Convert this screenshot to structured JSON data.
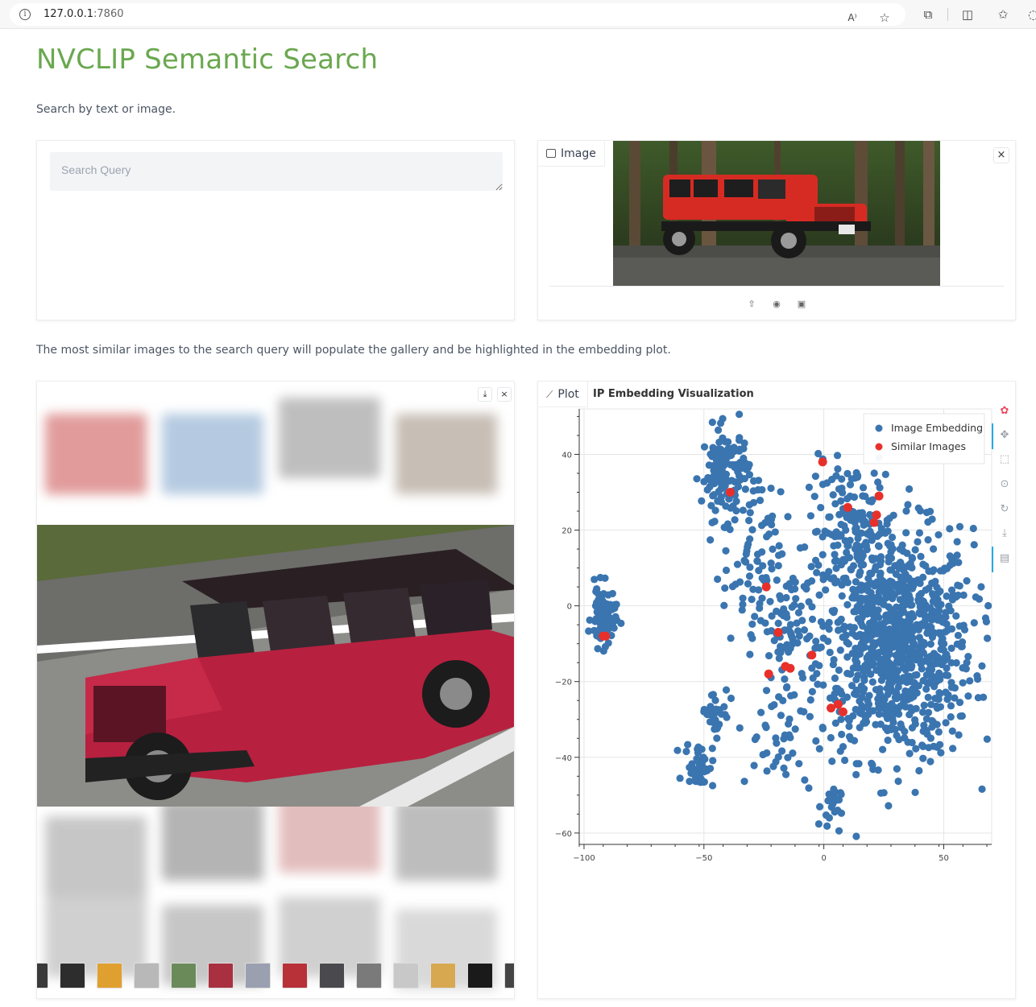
{
  "browser": {
    "url_host": "127.0.0.1",
    "url_port": ":7860"
  },
  "header": {
    "title": "NVCLIP Semantic Search",
    "description": "Search by text or image."
  },
  "search": {
    "placeholder": "Search Query",
    "value": ""
  },
  "image_input": {
    "label": "Image",
    "close_label": "×",
    "sources": [
      "upload-icon",
      "webcam-icon",
      "clipboard-icon"
    ]
  },
  "gallery": {
    "description": "The most similar images to the search query will populate the gallery and be highlighted in the embedding plot.",
    "download_label": "⤓",
    "close_label": "×",
    "thumbnail_count": 15
  },
  "plot": {
    "label": "Plot",
    "title": "IP Embedding Visualization",
    "tools": [
      "bokeh-logo-icon",
      "pan-icon",
      "box-zoom-icon",
      "wheel-zoom-icon",
      "reset-icon",
      "save-icon",
      "hover-icon"
    ]
  },
  "chart_data": {
    "type": "scatter",
    "title": "IP Embedding Visualization",
    "xlim": [
      -102,
      70
    ],
    "ylim": [
      -63,
      52
    ],
    "xticks": [
      -100,
      -50,
      0,
      50
    ],
    "yticks": [
      -60,
      -40,
      -20,
      0,
      20,
      40
    ],
    "grid": true,
    "legend_position": "top-right",
    "series": [
      {
        "name": "Image Embedding",
        "color": "#3a75b0",
        "clusters": [
          {
            "cx": 30,
            "cy": -10,
            "sx": 16,
            "sy": 15,
            "n": 950
          },
          {
            "cx": 12,
            "cy": 20,
            "sx": 9,
            "sy": 9,
            "n": 150
          },
          {
            "cx": -41,
            "cy": 35,
            "sx": 5,
            "sy": 6,
            "n": 150
          },
          {
            "cx": -15,
            "cy": -8,
            "sx": 6,
            "sy": 8,
            "n": 70
          },
          {
            "cx": -92,
            "cy": -3,
            "sx": 2.5,
            "sy": 4,
            "n": 80
          },
          {
            "cx": -52,
            "cy": -42,
            "sx": 3,
            "sy": 3,
            "n": 45
          },
          {
            "cx": -45,
            "cy": -28,
            "sx": 3,
            "sy": 3,
            "n": 30
          },
          {
            "cx": 3,
            "cy": -53,
            "sx": 2,
            "sy": 3,
            "n": 25
          },
          {
            "cx": -30,
            "cy": 10,
            "sx": 6,
            "sy": 10,
            "n": 70
          },
          {
            "cx": -20,
            "cy": -35,
            "sx": 8,
            "sy": 8,
            "n": 40
          }
        ]
      },
      {
        "name": "Similar Images",
        "color": "#e8302a",
        "points": [
          [
            -0.5,
            38
          ],
          [
            -39,
            30
          ],
          [
            10,
            26
          ],
          [
            23,
            29
          ],
          [
            22,
            24
          ],
          [
            21,
            22
          ],
          [
            -24,
            5
          ],
          [
            -19,
            -7
          ],
          [
            -5,
            -13
          ],
          [
            -16,
            -16
          ],
          [
            -14,
            -16.5
          ],
          [
            -23,
            -18
          ],
          [
            3,
            -27
          ],
          [
            6,
            -26
          ],
          [
            8,
            -28
          ],
          [
            -91,
            -8
          ],
          [
            -92,
            -8
          ]
        ]
      }
    ]
  }
}
